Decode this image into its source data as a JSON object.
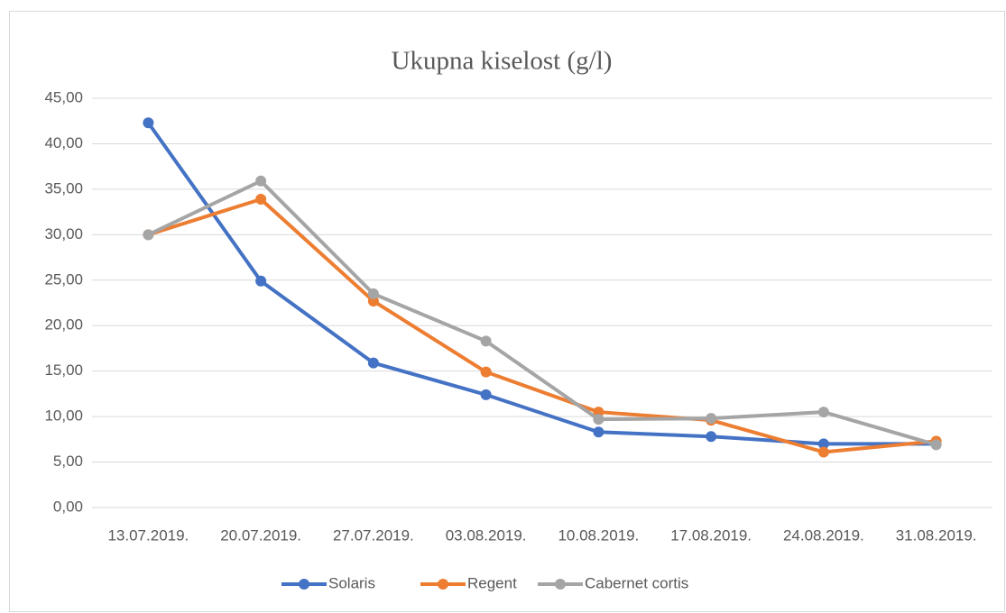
{
  "chart_data": {
    "type": "line",
    "title": "Ukupna kiselost (g/l)",
    "categories": [
      "13.07.2019.",
      "20.07.2019.",
      "27.07.2019.",
      "03.08.2019.",
      "10.08.2019.",
      "17.08.2019.",
      "24.08.2019.",
      "31.08.2019."
    ],
    "series": [
      {
        "name": "Solaris",
        "color": "#4472c4",
        "values": [
          42.3,
          24.9,
          15.9,
          12.4,
          8.3,
          7.8,
          7.0,
          7.0
        ]
      },
      {
        "name": "Regent",
        "color": "#ed7d31",
        "values": [
          30.0,
          33.9,
          22.7,
          14.9,
          10.5,
          9.6,
          6.1,
          7.3
        ]
      },
      {
        "name": "Cabernet cortis",
        "color": "#a5a5a5",
        "values": [
          30.0,
          35.9,
          23.5,
          18.3,
          9.7,
          9.8,
          10.5,
          6.9
        ]
      }
    ],
    "ylim": [
      0,
      45
    ],
    "yticks": [
      {
        "value": 0,
        "label": "0,00"
      },
      {
        "value": 5,
        "label": "5,00"
      },
      {
        "value": 10,
        "label": "10,00"
      },
      {
        "value": 15,
        "label": "15,00"
      },
      {
        "value": 20,
        "label": "20,00"
      },
      {
        "value": 25,
        "label": "25,00"
      },
      {
        "value": 30,
        "label": "30,00"
      },
      {
        "value": 35,
        "label": "35,00"
      },
      {
        "value": 40,
        "label": "40,00"
      },
      {
        "value": 45,
        "label": "45,00"
      }
    ],
    "grid": true,
    "legend": "bottom"
  }
}
